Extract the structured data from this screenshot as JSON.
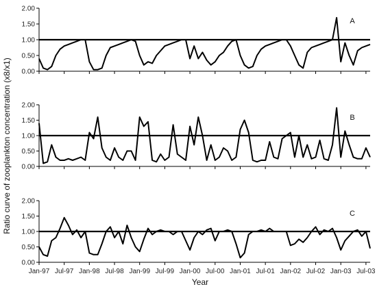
{
  "chart_data": {
    "type": "line",
    "ylabel": "Ratio curve of zooplankton concentration (x8/x1)",
    "xlabel": "Year",
    "x_ticks": [
      "Jan-97",
      "Jul-97",
      "Jan-98",
      "Jul-98",
      "Jan-99",
      "Jul-99",
      "Jan-00",
      "Jul-00",
      "Jan-01",
      "Jul-01",
      "Jan-02",
      "Jul-02",
      "Jan-03",
      "Jul-03"
    ],
    "xlim": [
      "1997-01",
      "2003-08"
    ],
    "ylim": [
      0,
      2.0
    ],
    "y_ticks": [
      "0.00",
      "0.50",
      "1.00",
      "1.50",
      "2.00"
    ],
    "reference_line": 1.0,
    "panels": [
      {
        "label": "A",
        "series": [
          {
            "x": [
              "1997-01",
              "1997-02",
              "1997-03",
              "1997-04",
              "1997-05",
              "1997-06",
              "1997-07",
              "1997-08",
              "1997-09",
              "1997-10",
              "1997-11",
              "1997-12",
              "1998-01",
              "1998-02",
              "1998-03",
              "1998-04",
              "1998-05",
              "1998-06",
              "1998-07",
              "1998-08",
              "1998-09",
              "1998-10",
              "1998-11",
              "1998-12",
              "1999-01",
              "1999-02",
              "1999-03",
              "1999-04",
              "1999-05",
              "1999-06",
              "1999-07",
              "1999-08",
              "1999-09",
              "1999-10",
              "1999-11",
              "1999-12",
              "2000-01",
              "2000-02",
              "2000-03",
              "2000-04",
              "2000-05",
              "2000-06",
              "2000-07",
              "2000-08",
              "2000-09",
              "2000-10",
              "2000-11",
              "2000-12",
              "2001-01",
              "2001-02",
              "2001-03",
              "2001-04",
              "2001-05",
              "2001-06",
              "2001-07",
              "2001-08",
              "2001-09",
              "2001-10",
              "2001-11",
              "2001-12",
              "2002-01",
              "2002-02",
              "2002-03",
              "2002-04",
              "2002-05",
              "2002-06",
              "2002-07",
              "2002-08",
              "2002-09",
              "2002-10",
              "2002-11",
              "2002-12",
              "2003-01",
              "2003-02",
              "2003-03",
              "2003-04",
              "2003-05",
              "2003-06",
              "2003-07",
              "2003-08"
            ],
            "y": [
              0.4,
              0.1,
              0.05,
              0.15,
              0.5,
              0.7,
              0.8,
              0.85,
              0.9,
              0.95,
              1.0,
              1.0,
              0.3,
              0.05,
              0.05,
              0.1,
              0.5,
              0.75,
              0.8,
              0.85,
              0.9,
              0.95,
              1.0,
              0.95,
              0.5,
              0.2,
              0.3,
              0.25,
              0.5,
              0.65,
              0.8,
              0.85,
              0.9,
              0.95,
              1.0,
              1.0,
              0.4,
              0.8,
              0.4,
              0.6,
              0.35,
              0.2,
              0.3,
              0.5,
              0.6,
              0.8,
              0.95,
              1.0,
              0.5,
              0.2,
              0.1,
              0.15,
              0.5,
              0.7,
              0.8,
              0.85,
              0.9,
              0.95,
              1.0,
              1.0,
              0.8,
              0.5,
              0.2,
              0.1,
              0.6,
              0.75,
              0.8,
              0.85,
              0.9,
              0.95,
              1.0,
              1.7,
              0.3,
              0.9,
              0.5,
              0.2,
              0.65,
              0.75,
              0.8,
              0.85
            ]
          }
        ]
      },
      {
        "label": "B",
        "series": [
          {
            "x": [
              "1997-01",
              "1997-02",
              "1997-03",
              "1997-04",
              "1997-05",
              "1997-06",
              "1997-07",
              "1997-08",
              "1997-09",
              "1997-10",
              "1997-11",
              "1997-12",
              "1998-01",
              "1998-02",
              "1998-03",
              "1998-04",
              "1998-05",
              "1998-06",
              "1998-07",
              "1998-08",
              "1998-09",
              "1998-10",
              "1998-11",
              "1998-12",
              "1999-01",
              "1999-02",
              "1999-03",
              "1999-04",
              "1999-05",
              "1999-06",
              "1999-07",
              "1999-08",
              "1999-09",
              "1999-10",
              "1999-11",
              "1999-12",
              "2000-01",
              "2000-02",
              "2000-03",
              "2000-04",
              "2000-05",
              "2000-06",
              "2000-07",
              "2000-08",
              "2000-09",
              "2000-10",
              "2000-11",
              "2000-12",
              "2001-01",
              "2001-02",
              "2001-03",
              "2001-04",
              "2001-05",
              "2001-06",
              "2001-07",
              "2001-08",
              "2001-09",
              "2001-10",
              "2001-11",
              "2001-12",
              "2002-01",
              "2002-02",
              "2002-03",
              "2002-04",
              "2002-05",
              "2002-06",
              "2002-07",
              "2002-08",
              "2002-09",
              "2002-10",
              "2002-11",
              "2002-12",
              "2003-01",
              "2003-02",
              "2003-03",
              "2003-04",
              "2003-05",
              "2003-06",
              "2003-07",
              "2003-08"
            ],
            "y": [
              1.4,
              0.1,
              0.15,
              0.7,
              0.3,
              0.2,
              0.2,
              0.25,
              0.2,
              0.25,
              0.3,
              0.2,
              1.1,
              0.9,
              1.6,
              0.6,
              0.3,
              0.2,
              0.6,
              0.3,
              0.2,
              0.5,
              0.5,
              0.2,
              1.6,
              1.3,
              1.45,
              0.2,
              0.15,
              0.4,
              0.2,
              0.3,
              1.35,
              0.4,
              0.3,
              0.2,
              1.3,
              0.7,
              1.6,
              1.0,
              0.2,
              0.7,
              0.2,
              0.3,
              0.6,
              0.5,
              0.2,
              0.3,
              1.2,
              1.5,
              1.1,
              0.2,
              0.15,
              0.2,
              0.2,
              0.8,
              0.3,
              0.25,
              0.9,
              1.0,
              1.1,
              0.3,
              1.0,
              0.3,
              0.7,
              0.25,
              0.3,
              0.85,
              0.25,
              0.2,
              0.7,
              1.9,
              0.3,
              1.15,
              0.7,
              0.3,
              0.25,
              0.25,
              0.6,
              0.3
            ]
          }
        ]
      },
      {
        "label": "C",
        "series": [
          {
            "x": [
              "1997-01",
              "1997-02",
              "1997-03",
              "1997-04",
              "1997-05",
              "1997-06",
              "1997-07",
              "1997-08",
              "1997-09",
              "1997-10",
              "1997-11",
              "1997-12",
              "1998-01",
              "1998-02",
              "1998-03",
              "1998-04",
              "1998-05",
              "1998-06",
              "1998-07",
              "1998-08",
              "1998-09",
              "1998-10",
              "1998-11",
              "1998-12",
              "1999-01",
              "1999-02",
              "1999-03",
              "1999-04",
              "1999-05",
              "1999-06",
              "1999-07",
              "1999-08",
              "1999-09",
              "1999-10",
              "1999-11",
              "1999-12",
              "2000-01",
              "2000-02",
              "2000-03",
              "2000-04",
              "2000-05",
              "2000-06",
              "2000-07",
              "2000-08",
              "2000-09",
              "2000-10",
              "2000-11",
              "2000-12",
              "2001-01",
              "2001-02",
              "2001-03",
              "2001-04",
              "2001-05",
              "2001-06",
              "2001-07",
              "2001-08",
              "2001-09",
              "2001-10",
              "2001-11",
              "2001-12",
              "2002-01",
              "2002-02",
              "2002-03",
              "2002-04",
              "2002-05",
              "2002-06",
              "2002-07",
              "2002-08",
              "2002-09",
              "2002-10",
              "2002-11",
              "2002-12",
              "2003-01",
              "2003-02",
              "2003-03",
              "2003-04",
              "2003-05",
              "2003-06",
              "2003-07",
              "2003-08"
            ],
            "y": [
              0.5,
              0.25,
              0.2,
              0.7,
              0.8,
              1.1,
              1.45,
              1.2,
              0.9,
              1.05,
              0.8,
              1.0,
              0.3,
              0.25,
              0.25,
              0.6,
              1.0,
              1.15,
              0.8,
              1.0,
              0.6,
              1.2,
              0.8,
              0.5,
              0.35,
              0.75,
              1.1,
              0.9,
              1.0,
              1.05,
              1.0,
              1.0,
              0.9,
              1.0,
              1.0,
              0.7,
              0.4,
              0.8,
              1.0,
              0.9,
              1.05,
              1.1,
              0.7,
              1.0,
              1.0,
              1.05,
              1.0,
              0.6,
              0.15,
              0.3,
              0.9,
              1.0,
              1.0,
              1.05,
              1.0,
              1.1,
              1.0,
              1.0,
              1.0,
              1.0,
              0.55,
              0.6,
              0.75,
              0.65,
              0.8,
              1.0,
              1.15,
              0.9,
              1.05,
              1.0,
              1.1,
              0.8,
              0.4,
              0.7,
              0.85,
              1.0,
              1.05,
              0.85,
              1.0,
              0.45
            ]
          }
        ]
      }
    ]
  }
}
